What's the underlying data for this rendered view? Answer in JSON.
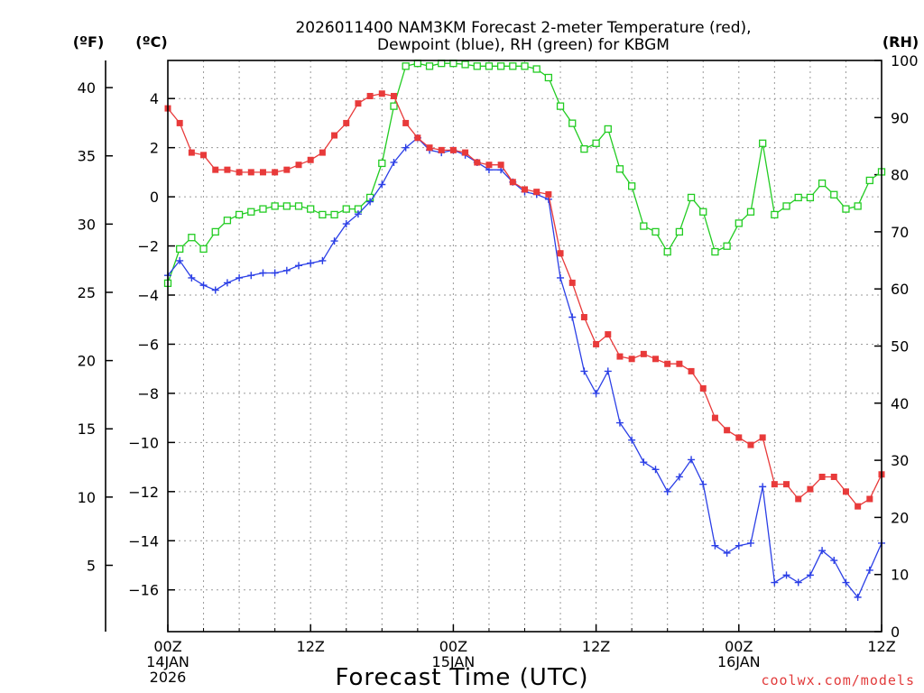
{
  "chart_data": {
    "type": "line",
    "title": [
      "2026011400 NAM3KM Forecast 2-meter Temperature (red),",
      "Dewpoint (blue), RH (green) for KBGM"
    ],
    "unit_labels": {
      "fahrenheit": "(ºF)",
      "celsius": "(ºC)",
      "rh": "(RH)"
    },
    "xlabel": "Forecast Time (UTC)",
    "credit": "coolwx.com/models",
    "x_ticks": [
      {
        "hour": 0,
        "lines": [
          "00Z",
          "14JAN",
          "2026"
        ]
      },
      {
        "hour": 12,
        "lines": [
          "12Z"
        ]
      },
      {
        "hour": 24,
        "lines": [
          "00Z",
          "15JAN"
        ]
      },
      {
        "hour": 36,
        "lines": [
          "12Z"
        ]
      },
      {
        "hour": 48,
        "lines": [
          "00Z",
          "16JAN"
        ]
      },
      {
        "hour": 60,
        "lines": [
          "12Z"
        ]
      }
    ],
    "xlim": [
      0,
      60
    ],
    "ylim_celsius": [
      -17.7,
      5.55
    ],
    "yticks_celsius": [
      4,
      2,
      0,
      -2,
      -4,
      -6,
      -8,
      -10,
      -12,
      -14,
      -16
    ],
    "ytick_labels_celsius": [
      "4",
      "2",
      "0",
      "−2",
      "−4",
      "−6",
      "−8",
      "−10",
      "−12",
      "−14",
      "−16"
    ],
    "yticks_fahrenheit": [
      40,
      35,
      30,
      25,
      20,
      15,
      10,
      5
    ],
    "ylim_rh": [
      0,
      100
    ],
    "yticks_rh": [
      100,
      90,
      80,
      70,
      60,
      50,
      40,
      30,
      20,
      10,
      0
    ],
    "grid": true,
    "x": [
      0,
      1,
      2,
      3,
      4,
      5,
      6,
      7,
      8,
      9,
      10,
      11,
      12,
      13,
      14,
      15,
      16,
      17,
      18,
      19,
      20,
      21,
      22,
      23,
      24,
      25,
      26,
      27,
      28,
      29,
      30,
      31,
      32,
      33,
      34,
      35,
      36,
      37,
      38,
      39,
      40,
      41,
      42,
      43,
      44,
      45,
      46,
      47,
      48,
      49,
      50,
      51,
      52,
      53,
      54,
      55,
      56,
      57,
      58,
      59,
      60
    ],
    "series": [
      {
        "name": "2-meter Temperature",
        "unit": "C",
        "color": "#e83a3a",
        "marker": "filled-square",
        "values": [
          3.6,
          3.0,
          1.8,
          1.7,
          1.1,
          1.1,
          1.0,
          1.0,
          1.0,
          1.0,
          1.1,
          1.3,
          1.5,
          1.8,
          2.5,
          3.0,
          3.8,
          4.1,
          4.2,
          4.1,
          3.0,
          2.4,
          2.0,
          1.9,
          1.9,
          1.8,
          1.4,
          1.3,
          1.3,
          0.6,
          0.3,
          0.2,
          0.1,
          -2.3,
          -3.5,
          -4.9,
          -6.0,
          -5.6,
          -6.5,
          -6.6,
          -6.4,
          -6.6,
          -6.8,
          -6.8,
          -7.1,
          -7.8,
          -9.0,
          -9.5,
          -9.8,
          -10.1,
          -9.8,
          -11.7,
          -11.7,
          -12.3,
          -11.9,
          -11.4,
          -11.4,
          -12.0,
          -12.6,
          -12.3,
          -11.3
        ]
      },
      {
        "name": "Dewpoint",
        "unit": "C",
        "color": "#2b3fe6",
        "marker": "plus",
        "values": [
          -3.2,
          -2.6,
          -3.3,
          -3.6,
          -3.8,
          -3.5,
          -3.3,
          -3.2,
          -3.1,
          -3.1,
          -3.0,
          -2.8,
          -2.7,
          -2.6,
          -1.8,
          -1.1,
          -0.7,
          -0.2,
          0.5,
          1.4,
          2.0,
          2.4,
          1.9,
          1.8,
          1.9,
          1.7,
          1.4,
          1.1,
          1.1,
          0.6,
          0.2,
          0.1,
          -0.1,
          -3.3,
          -4.9,
          -7.1,
          -8.0,
          -7.1,
          -9.2,
          -9.9,
          -10.8,
          -11.1,
          -12.0,
          -11.4,
          -10.7,
          -11.7,
          -14.2,
          -14.5,
          -14.2,
          -14.1,
          -11.8,
          -15.7,
          -15.4,
          -15.7,
          -15.4,
          -14.4,
          -14.8,
          -15.7,
          -16.3,
          -15.2,
          -14.1
        ]
      },
      {
        "name": "RH",
        "unit": "%",
        "color": "#22cc22",
        "marker": "open-square",
        "values": [
          61,
          67,
          69,
          67,
          70,
          72,
          73,
          73.5,
          74,
          74.5,
          74.5,
          74.5,
          74,
          73,
          73,
          74,
          74,
          76,
          82,
          92,
          99,
          99.5,
          99,
          99.5,
          99.5,
          99.3,
          99,
          99,
          99,
          99,
          99,
          98.5,
          97,
          92,
          89,
          84.5,
          85.5,
          88,
          81,
          78,
          71,
          70,
          66.5,
          70,
          76,
          73.5,
          66.5,
          67.5,
          71.5,
          73.5,
          85.5,
          73,
          74.5,
          76,
          76,
          78.5,
          76.5,
          74,
          74.5,
          79,
          80.5
        ]
      }
    ]
  }
}
